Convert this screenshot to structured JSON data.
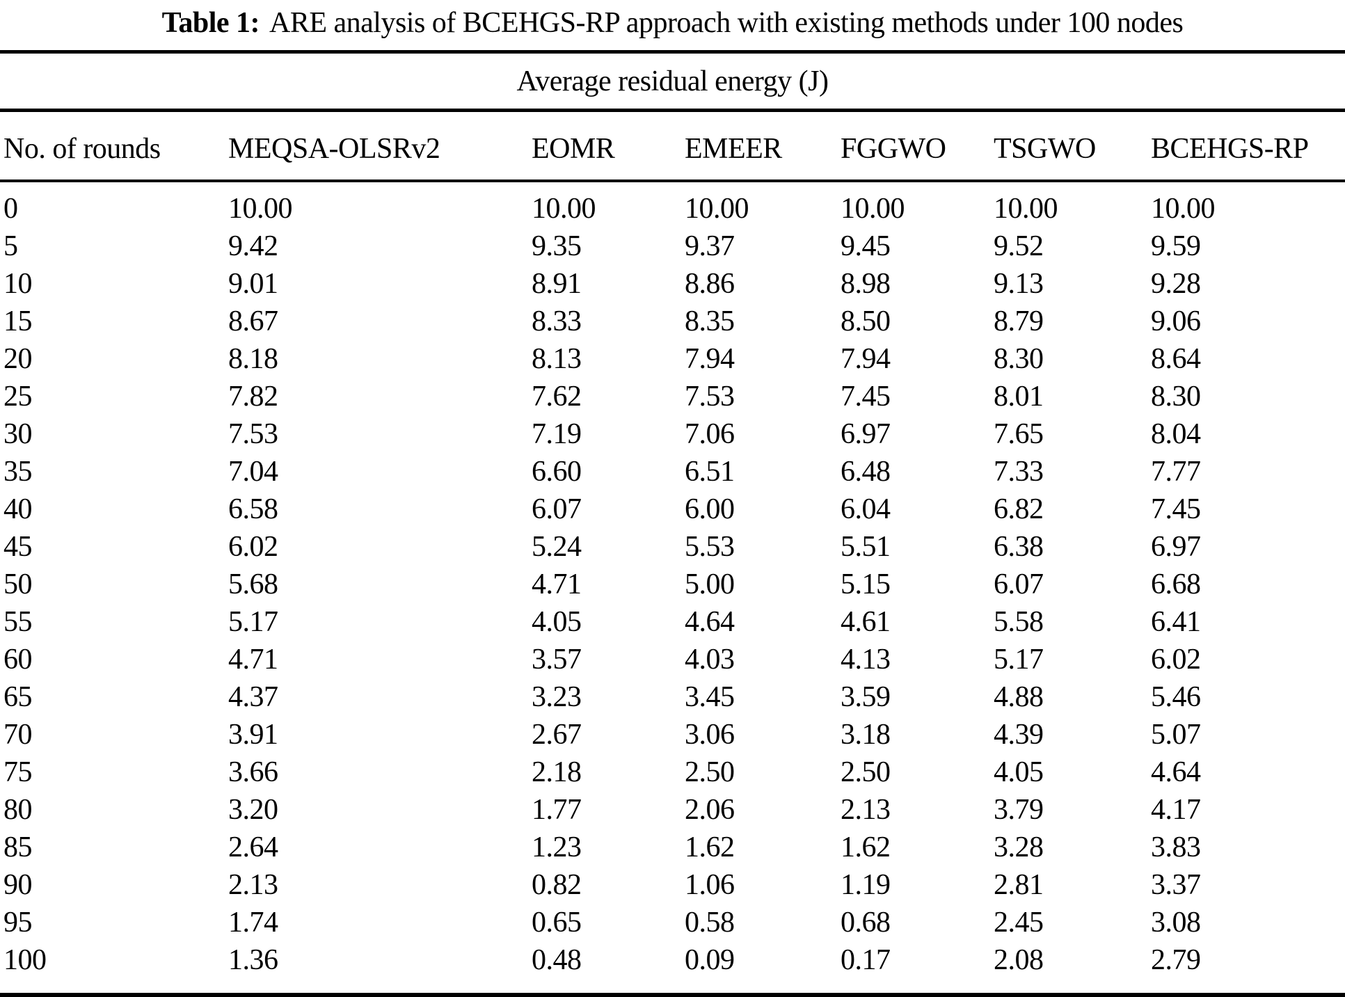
{
  "table": {
    "caption_label": "Table 1:",
    "caption_text": "ARE analysis of BCEHGS-RP approach with existing methods under 100 nodes",
    "group_header": "Average residual energy (J)",
    "columns": [
      "No. of rounds",
      "MEQSA-OLSRv2",
      "EOMR",
      "EMEER",
      "FGGWO",
      "TSGWO",
      "BCEHGS-RP"
    ],
    "rows": [
      [
        "0",
        "10.00",
        "10.00",
        "10.00",
        "10.00",
        "10.00",
        "10.00"
      ],
      [
        "5",
        "9.42",
        "9.35",
        "9.37",
        "9.45",
        "9.52",
        "9.59"
      ],
      [
        "10",
        "9.01",
        "8.91",
        "8.86",
        "8.98",
        "9.13",
        "9.28"
      ],
      [
        "15",
        "8.67",
        "8.33",
        "8.35",
        "8.50",
        "8.79",
        "9.06"
      ],
      [
        "20",
        "8.18",
        "8.13",
        "7.94",
        "7.94",
        "8.30",
        "8.64"
      ],
      [
        "25",
        "7.82",
        "7.62",
        "7.53",
        "7.45",
        "8.01",
        "8.30"
      ],
      [
        "30",
        "7.53",
        "7.19",
        "7.06",
        "6.97",
        "7.65",
        "8.04"
      ],
      [
        "35",
        "7.04",
        "6.60",
        "6.51",
        "6.48",
        "7.33",
        "7.77"
      ],
      [
        "40",
        "6.58",
        "6.07",
        "6.00",
        "6.04",
        "6.82",
        "7.45"
      ],
      [
        "45",
        "6.02",
        "5.24",
        "5.53",
        "5.51",
        "6.38",
        "6.97"
      ],
      [
        "50",
        "5.68",
        "4.71",
        "5.00",
        "5.15",
        "6.07",
        "6.68"
      ],
      [
        "55",
        "5.17",
        "4.05",
        "4.64",
        "4.61",
        "5.58",
        "6.41"
      ],
      [
        "60",
        "4.71",
        "3.57",
        "4.03",
        "4.13",
        "5.17",
        "6.02"
      ],
      [
        "65",
        "4.37",
        "3.23",
        "3.45",
        "3.59",
        "4.88",
        "5.46"
      ],
      [
        "70",
        "3.91",
        "2.67",
        "3.06",
        "3.18",
        "4.39",
        "5.07"
      ],
      [
        "75",
        "3.66",
        "2.18",
        "2.50",
        "2.50",
        "4.05",
        "4.64"
      ],
      [
        "80",
        "3.20",
        "1.77",
        "2.06",
        "2.13",
        "3.79",
        "4.17"
      ],
      [
        "85",
        "2.64",
        "1.23",
        "1.62",
        "1.62",
        "3.28",
        "3.83"
      ],
      [
        "90",
        "2.13",
        "0.82",
        "1.06",
        "1.19",
        "2.81",
        "3.37"
      ],
      [
        "95",
        "1.74",
        "0.65",
        "0.58",
        "0.68",
        "2.45",
        "3.08"
      ],
      [
        "100",
        "1.36",
        "0.48",
        "0.09",
        "0.17",
        "2.08",
        "2.79"
      ]
    ]
  },
  "chart_data": {
    "type": "table",
    "title": "Table 1: ARE analysis of BCEHGS-RP approach with existing methods under 100 nodes",
    "group_header": "Average residual energy (J)",
    "xlabel": "No. of rounds",
    "x": [
      0,
      5,
      10,
      15,
      20,
      25,
      30,
      35,
      40,
      45,
      50,
      55,
      60,
      65,
      70,
      75,
      80,
      85,
      90,
      95,
      100
    ],
    "series": [
      {
        "name": "MEQSA-OLSRv2",
        "values": [
          10.0,
          9.42,
          9.01,
          8.67,
          8.18,
          7.82,
          7.53,
          7.04,
          6.58,
          6.02,
          5.68,
          5.17,
          4.71,
          4.37,
          3.91,
          3.66,
          3.2,
          2.64,
          2.13,
          1.74,
          1.36
        ]
      },
      {
        "name": "EOMR",
        "values": [
          10.0,
          9.35,
          8.91,
          8.33,
          8.13,
          7.62,
          7.19,
          6.6,
          6.07,
          5.24,
          4.71,
          4.05,
          3.57,
          3.23,
          2.67,
          2.18,
          1.77,
          1.23,
          0.82,
          0.65,
          0.48
        ]
      },
      {
        "name": "EMEER",
        "values": [
          10.0,
          9.37,
          8.86,
          8.35,
          7.94,
          7.53,
          7.06,
          6.51,
          6.0,
          5.53,
          5.0,
          4.64,
          4.03,
          3.45,
          3.06,
          2.5,
          2.06,
          1.62,
          1.06,
          0.58,
          0.09
        ]
      },
      {
        "name": "FGGWO",
        "values": [
          10.0,
          9.45,
          8.98,
          8.5,
          7.94,
          7.45,
          6.97,
          6.48,
          6.04,
          5.51,
          5.15,
          4.61,
          4.13,
          3.59,
          3.18,
          2.5,
          2.13,
          1.62,
          1.19,
          0.68,
          0.17
        ]
      },
      {
        "name": "TSGWO",
        "values": [
          10.0,
          9.52,
          9.13,
          8.79,
          8.3,
          8.01,
          7.65,
          7.33,
          6.82,
          6.38,
          6.07,
          5.58,
          5.17,
          4.88,
          4.39,
          4.05,
          3.79,
          3.28,
          2.81,
          2.45,
          2.08
        ]
      },
      {
        "name": "BCEHGS-RP",
        "values": [
          10.0,
          9.59,
          9.28,
          9.06,
          8.64,
          8.3,
          8.04,
          7.77,
          7.45,
          6.97,
          6.68,
          6.41,
          6.02,
          5.46,
          5.07,
          4.64,
          4.17,
          3.83,
          3.37,
          3.08,
          2.79
        ]
      }
    ]
  },
  "colors": {
    "text": "#000000",
    "background": "#ffffff",
    "rule": "#000000"
  }
}
